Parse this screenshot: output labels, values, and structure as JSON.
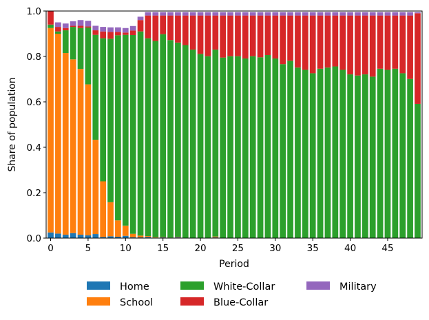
{
  "chart_data": {
    "type": "bar",
    "stacked": true,
    "title": "",
    "xlabel": "Period",
    "ylabel": "Share of population",
    "xlim": [
      -0.6,
      49.6
    ],
    "ylim": [
      0,
      1.0
    ],
    "xticks": [
      0,
      5,
      10,
      15,
      20,
      25,
      30,
      35,
      40,
      45
    ],
    "yticks": [
      0.0,
      0.2,
      0.4,
      0.6,
      0.8,
      1.0
    ],
    "xtick_labels": [
      "0",
      "5",
      "10",
      "15",
      "20",
      "25",
      "30",
      "35",
      "40",
      "45"
    ],
    "ytick_labels": [
      "0.0",
      "0.2",
      "0.4",
      "0.6",
      "0.8",
      "1.0"
    ],
    "legend_position": "bottom-center",
    "categories": [
      0,
      1,
      2,
      3,
      4,
      5,
      6,
      7,
      8,
      9,
      10,
      11,
      12,
      13,
      14,
      15,
      16,
      17,
      18,
      19,
      20,
      21,
      22,
      23,
      24,
      25,
      26,
      27,
      28,
      29,
      30,
      31,
      32,
      33,
      34,
      35,
      36,
      37,
      38,
      39,
      40,
      41,
      42,
      43,
      44,
      45,
      46,
      47,
      48,
      49
    ],
    "series": [
      {
        "name": "Home",
        "color": "#1f77b4",
        "values": [
          0.025,
          0.02,
          0.015,
          0.022,
          0.015,
          0.012,
          0.018,
          0.005,
          0.008,
          0.006,
          0.01,
          0.004,
          0.003,
          0.005,
          0.002,
          0.003,
          0.001,
          0.004,
          0.001,
          0.001,
          0.001,
          0.001,
          0.003,
          0.001,
          0.001,
          0.001,
          0.001,
          0.001,
          0.001,
          0.001,
          0.001,
          0.001,
          0.001,
          0.001,
          0.001,
          0.001,
          0.001,
          0.001,
          0.001,
          0.001,
          0.001,
          0.001,
          0.001,
          0.001,
          0.001,
          0.001,
          0.001,
          0.001,
          0.001,
          0.001
        ]
      },
      {
        "name": "School",
        "color": "#ff7f0e",
        "values": [
          0.9,
          0.88,
          0.8,
          0.765,
          0.73,
          0.665,
          0.415,
          0.245,
          0.15,
          0.072,
          0.045,
          0.015,
          0.008,
          0.004,
          0.002,
          0.002,
          0.001,
          0.002,
          0.0,
          0.0,
          0.0,
          0.0,
          0.004,
          0.0,
          0.0,
          0.0,
          0.0,
          0.0,
          0.0,
          0.0,
          0.0,
          0.0,
          0.0,
          0.0,
          0.0,
          0.0,
          0.0,
          0.0,
          0.0,
          0.0,
          0.0,
          0.0,
          0.0,
          0.0,
          0.0,
          0.0,
          0.0,
          0.0,
          0.0,
          0.0
        ]
      },
      {
        "name": "White-Collar",
        "color": "#2ca02c",
        "values": [
          0.015,
          0.01,
          0.1,
          0.143,
          0.18,
          0.25,
          0.462,
          0.63,
          0.72,
          0.815,
          0.84,
          0.875,
          0.899,
          0.871,
          0.864,
          0.893,
          0.87,
          0.855,
          0.849,
          0.829,
          0.81,
          0.8,
          0.823,
          0.794,
          0.8,
          0.8,
          0.79,
          0.8,
          0.795,
          0.805,
          0.79,
          0.765,
          0.78,
          0.75,
          0.74,
          0.725,
          0.745,
          0.75,
          0.755,
          0.74,
          0.72,
          0.715,
          0.72,
          0.71,
          0.745,
          0.74,
          0.745,
          0.725,
          0.7,
          0.59
        ]
      },
      {
        "name": "Blue-Collar",
        "color": "#d62728",
        "values": [
          0.06,
          0.02,
          0.01,
          0.005,
          0.01,
          0.005,
          0.02,
          0.03,
          0.03,
          0.015,
          0.01,
          0.02,
          0.05,
          0.1,
          0.112,
          0.082,
          0.108,
          0.119,
          0.13,
          0.15,
          0.169,
          0.179,
          0.15,
          0.185,
          0.179,
          0.179,
          0.189,
          0.179,
          0.184,
          0.174,
          0.189,
          0.214,
          0.199,
          0.229,
          0.239,
          0.254,
          0.234,
          0.229,
          0.224,
          0.239,
          0.259,
          0.264,
          0.259,
          0.269,
          0.234,
          0.239,
          0.234,
          0.254,
          0.279,
          0.399
        ]
      },
      {
        "name": "Military",
        "color": "#9467bd",
        "values": [
          0.0,
          0.02,
          0.02,
          0.02,
          0.025,
          0.025,
          0.02,
          0.02,
          0.02,
          0.02,
          0.02,
          0.02,
          0.015,
          0.015,
          0.015,
          0.015,
          0.015,
          0.015,
          0.015,
          0.015,
          0.015,
          0.015,
          0.015,
          0.015,
          0.015,
          0.015,
          0.015,
          0.015,
          0.015,
          0.015,
          0.015,
          0.015,
          0.015,
          0.015,
          0.015,
          0.015,
          0.015,
          0.015,
          0.015,
          0.015,
          0.015,
          0.015,
          0.015,
          0.015,
          0.015,
          0.015,
          0.015,
          0.015,
          0.015,
          0.005
        ]
      }
    ]
  }
}
